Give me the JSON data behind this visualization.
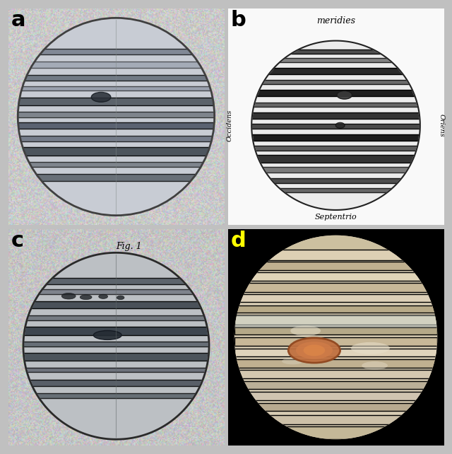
{
  "figure_bg": "#c0c0c0",
  "label_color_abc": "#000000",
  "label_color_d": "#ffff00",
  "label_fontsize": 22,
  "labels": [
    "a",
    "b",
    "c",
    "d"
  ],
  "panel_titles_b": {
    "top": "meridies",
    "bottom": "Septentrio",
    "left": "Occidens",
    "right": "Oriens"
  },
  "panel_c_title": "Fig. 1"
}
